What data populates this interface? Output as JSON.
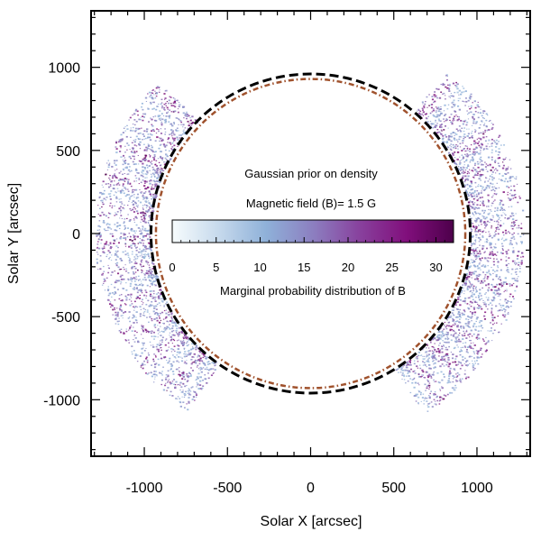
{
  "chart_data": {
    "type": "scatter",
    "title": "",
    "xlabel": "Solar X [arcsec]",
    "ylabel": "Solar Y [arcsec]",
    "xlim": [
      -1320,
      1320
    ],
    "ylim": [
      -1340,
      1340
    ],
    "xticks": [
      -1000,
      -500,
      0,
      500,
      1000
    ],
    "yticks": [
      -1000,
      -500,
      0,
      500,
      1000
    ],
    "xtick_labels": [
      "-1000",
      "-500",
      "0",
      "500",
      "1000"
    ],
    "ytick_labels": [
      "-1000",
      "-500",
      "0",
      "500",
      "1000"
    ],
    "minor_tick_step": 100,
    "grid": false,
    "annotations": {
      "line1": "Gaussian prior on density",
      "line2": "Magnetic field (B)= 1.5 G",
      "colorbar_title": "Marginal probability distribution of B"
    },
    "colorbar": {
      "min": 0,
      "max": 32,
      "ticks": [
        0,
        5,
        10,
        15,
        20,
        25,
        30
      ],
      "tick_labels": [
        "0",
        "5",
        "10",
        "15",
        "20",
        "25",
        "30"
      ],
      "colormap": [
        "#f7fcfd",
        "#c6d9ec",
        "#8fb1d9",
        "#8c7fc0",
        "#88419d",
        "#810f7c",
        "#4d004b"
      ]
    },
    "circles": [
      {
        "name": "solar-limb",
        "radius": 960,
        "style": "dashed",
        "color": "#000000"
      },
      {
        "name": "inner-reference",
        "radius": 930,
        "style": "dash-dot",
        "color": "#a0522d"
      }
    ],
    "density_regions": [
      {
        "name": "east-limb",
        "r_min": 960,
        "r_max": 1300,
        "angle_min_deg": 135,
        "angle_max_deg": 235
      },
      {
        "name": "west-limb",
        "r_min": 960,
        "r_max": 1280,
        "angle_min_deg": -58,
        "angle_max_deg": 50
      }
    ]
  }
}
